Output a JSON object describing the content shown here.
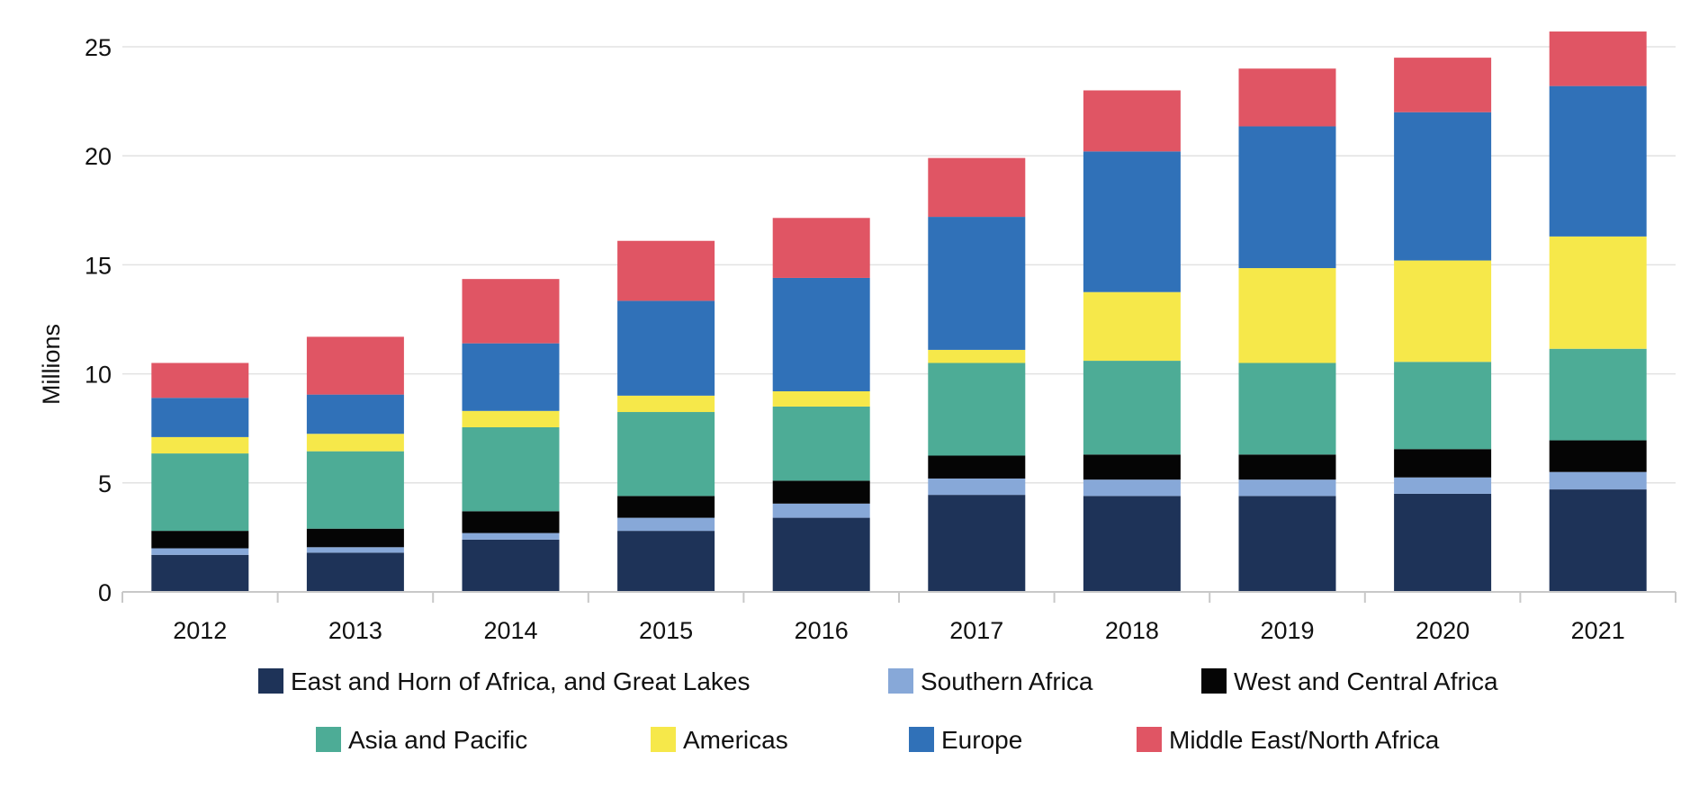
{
  "chart_data": {
    "type": "bar",
    "stacked": true,
    "title": "",
    "xlabel": "",
    "ylabel": "Millions",
    "ylim": [
      0,
      26
    ],
    "yticks": [
      0,
      5,
      10,
      15,
      20,
      25
    ],
    "grid": true,
    "legend_position": "bottom",
    "categories": [
      "2012",
      "2013",
      "2014",
      "2015",
      "2016",
      "2017",
      "2018",
      "2019",
      "2020",
      "2021"
    ],
    "series": [
      {
        "name": "East and Horn of Africa, and Great Lakes",
        "color": "#1e3358",
        "values": [
          1.7,
          1.8,
          2.4,
          2.8,
          3.4,
          4.45,
          4.4,
          4.4,
          4.5,
          4.7
        ]
      },
      {
        "name": "Southern Africa",
        "color": "#87a8d8",
        "values": [
          0.3,
          0.25,
          0.3,
          0.6,
          0.65,
          0.75,
          0.75,
          0.75,
          0.75,
          0.8
        ]
      },
      {
        "name": "West and Central Africa",
        "color": "#050505",
        "values": [
          0.8,
          0.85,
          1.0,
          1.0,
          1.05,
          1.05,
          1.15,
          1.15,
          1.3,
          1.45
        ]
      },
      {
        "name": "Asia and Pacific",
        "color": "#4dac96",
        "values": [
          3.55,
          3.55,
          3.85,
          3.85,
          3.4,
          4.25,
          4.3,
          4.2,
          4.0,
          4.2
        ]
      },
      {
        "name": "Americas",
        "color": "#f6e84a",
        "values": [
          0.75,
          0.8,
          0.75,
          0.75,
          0.7,
          0.6,
          3.15,
          4.35,
          4.65,
          5.15
        ]
      },
      {
        "name": "Europe",
        "color": "#3071b8",
        "values": [
          1.8,
          1.8,
          3.1,
          4.35,
          5.2,
          6.1,
          6.45,
          6.5,
          6.8,
          6.9
        ]
      },
      {
        "name": "Middle East/North Africa",
        "color": "#e05564",
        "values": [
          1.6,
          2.65,
          2.95,
          2.75,
          2.75,
          2.7,
          2.8,
          2.65,
          2.5,
          2.5
        ]
      }
    ]
  }
}
